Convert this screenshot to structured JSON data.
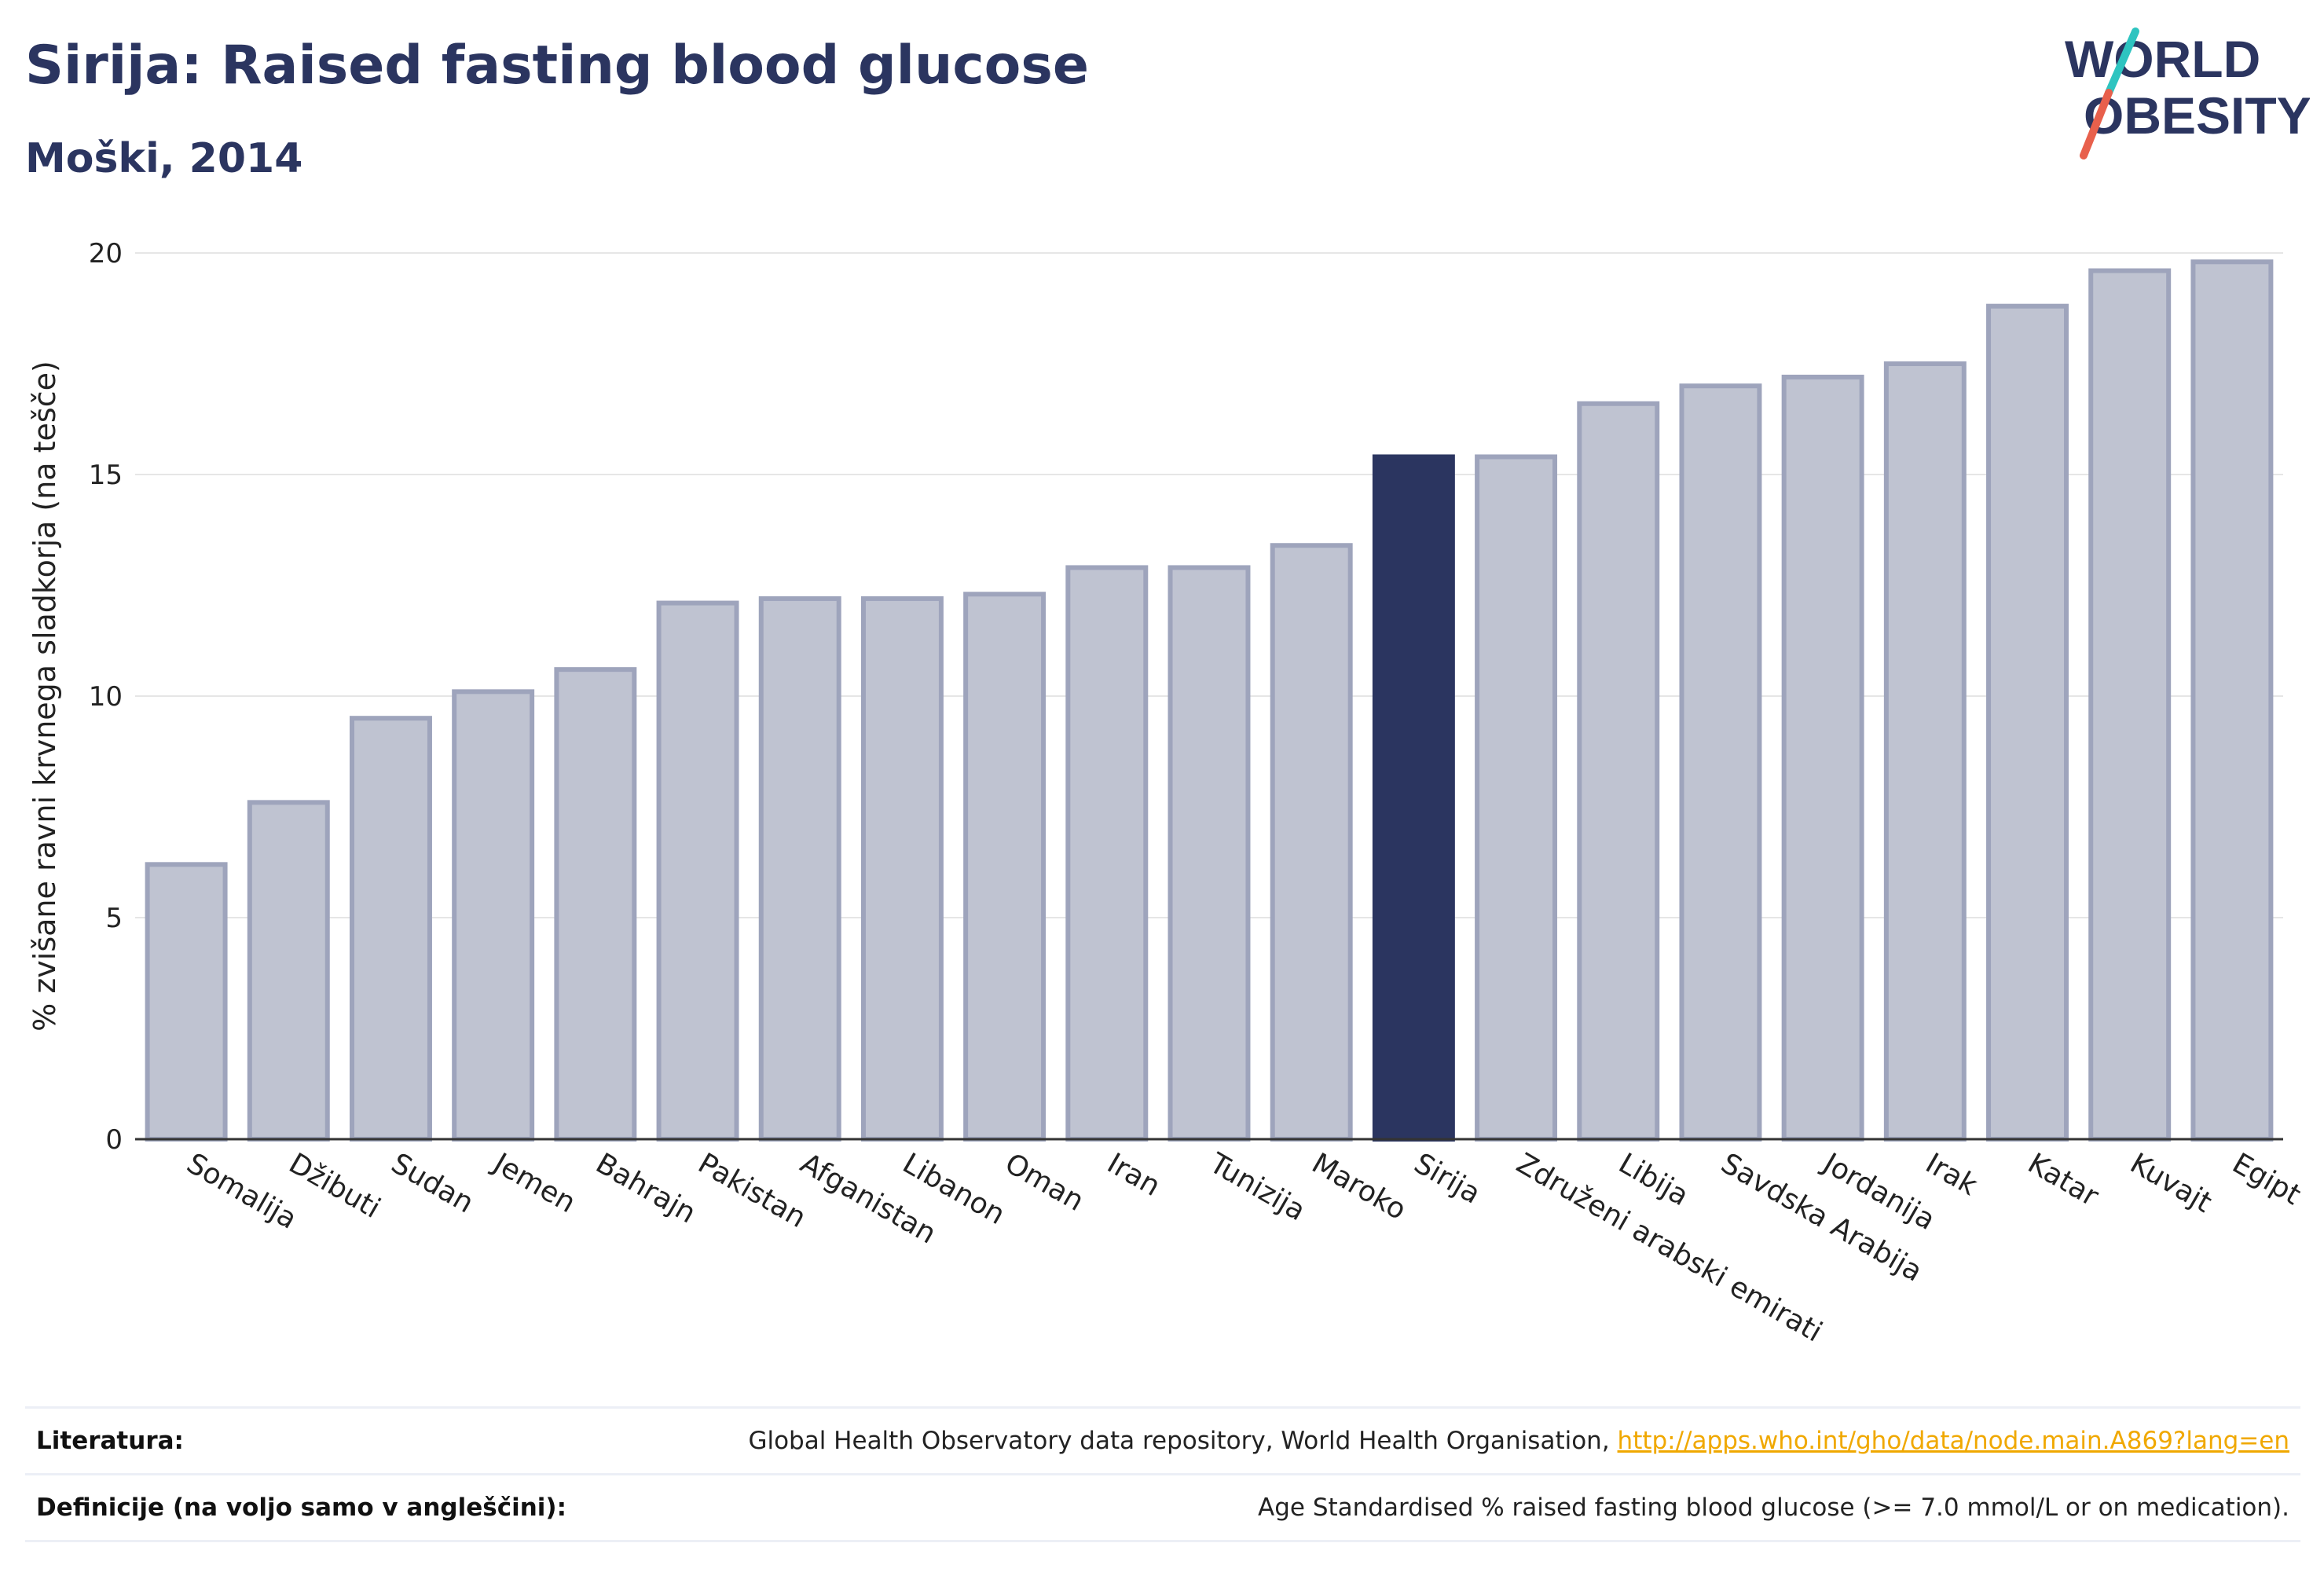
{
  "header": {
    "title": "Sirija: Raised fasting blood glucose",
    "subtitle": "Moški, 2014"
  },
  "logo": {
    "line1": "WORLD",
    "line2": "OBESITY",
    "colors": {
      "text": "#2b3560",
      "slash_teal": "#2ec4c0",
      "slash_red": "#e8604c"
    }
  },
  "chart_data": {
    "type": "bar",
    "ylabel": "% zvišane ravni krvnega sladkorja (na tešče)",
    "ylim": [
      0,
      20
    ],
    "yticks": [
      0,
      5,
      10,
      15,
      20
    ],
    "categories": [
      "Somalija",
      "Džibuti",
      "Sudan",
      "Jemen",
      "Bahrajn",
      "Pakistan",
      "Afganistan",
      "Libanon",
      "Oman",
      "Iran",
      "Tunizija",
      "Maroko",
      "Sirija",
      "Združeni arabski emirati",
      "Libija",
      "Savdska Arabija",
      "Jordanija",
      "Irak",
      "Katar",
      "Kuvajt",
      "Egipt"
    ],
    "values": [
      6.2,
      7.6,
      9.5,
      10.1,
      10.6,
      12.1,
      12.2,
      12.2,
      12.3,
      12.9,
      12.9,
      13.4,
      15.4,
      15.4,
      16.6,
      17.0,
      17.2,
      17.5,
      18.8,
      19.6,
      19.8
    ],
    "highlight": "Sirija",
    "colors": {
      "bar": "#bfc3d1",
      "bar_edge": "#9ea4bc",
      "highlight": "#2b3560",
      "grid": "#e6e6e6",
      "axis": "#333333"
    },
    "grid": true
  },
  "references": [
    {
      "label": "Literatura:",
      "text": "Global Health Observatory data repository, World Health Organisation, ",
      "link": "http://apps.who.int/gho/data/node.main.A869?lang=en"
    },
    {
      "label": "Definicije (na voljo samo v angleščini):",
      "text": "Age Standardised % raised fasting blood glucose (>= 7.0 mmol/L or on medication).",
      "link": ""
    }
  ]
}
